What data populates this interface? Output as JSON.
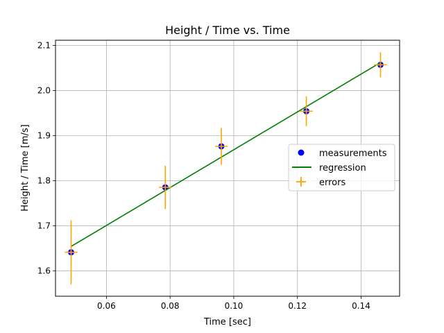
{
  "chart_data": {
    "type": "scatter",
    "title": "Height / Time vs. Time",
    "xlabel": "Time [sec]",
    "ylabel": "Height / Time [m/s]",
    "xlim": [
      0.044,
      0.1521
    ],
    "ylim": [
      1.5435,
      2.1115
    ],
    "xticks": [
      0.06,
      0.08,
      0.1,
      0.12,
      0.14
    ],
    "xtick_labels": [
      "0.06",
      "0.08",
      "0.10",
      "0.12",
      "0.14"
    ],
    "yticks": [
      1.6,
      1.7,
      1.8,
      1.9,
      2.0,
      2.1
    ],
    "ytick_labels": [
      "1.6",
      "1.7",
      "1.8",
      "1.9",
      "2.0",
      "2.1"
    ],
    "grid": true,
    "legend_position": "center-right",
    "series": [
      {
        "name": "measurements",
        "kind": "scatter",
        "color": "#0000ff",
        "x": [
          0.0489,
          0.0785,
          0.0961,
          0.1228,
          0.1461
        ],
        "y": [
          1.641,
          1.785,
          1.876,
          1.954,
          2.057
        ]
      },
      {
        "name": "regression",
        "kind": "line",
        "color": "#008000",
        "x": [
          0.0489,
          0.1461
        ],
        "y": [
          1.654,
          2.062
        ]
      },
      {
        "name": "errors",
        "kind": "errorbar",
        "color": "#ffa500",
        "x": [
          0.0489,
          0.0785,
          0.0961,
          0.1228,
          0.1461
        ],
        "y": [
          1.641,
          1.785,
          1.876,
          1.954,
          2.057
        ],
        "xerr": [
          0.002,
          0.002,
          0.002,
          0.002,
          0.002
        ],
        "yerr": [
          0.071,
          0.048,
          0.041,
          0.033,
          0.028
        ]
      }
    ]
  }
}
